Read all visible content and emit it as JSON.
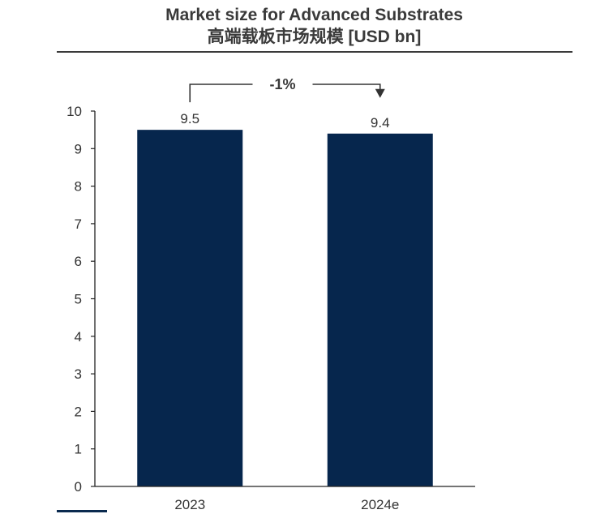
{
  "chart_data": {
    "type": "bar",
    "title": "Market size for Advanced Substrates",
    "subtitle": "高端载板市场规模  [USD bn]",
    "categories": [
      "2023",
      "2024e"
    ],
    "values": [
      9.5,
      9.4
    ],
    "value_labels": [
      "9.5",
      "9.4"
    ],
    "ylim": [
      0,
      10
    ],
    "yticks": [
      0,
      1,
      2,
      3,
      4,
      5,
      6,
      7,
      8,
      9,
      10
    ],
    "grid": false,
    "legend": "none",
    "annotation": {
      "text": "-1%",
      "from": "2023",
      "to": "2024e"
    },
    "bar_color": "#06264d",
    "axis_color": "#222222",
    "text_color": "#333333"
  }
}
